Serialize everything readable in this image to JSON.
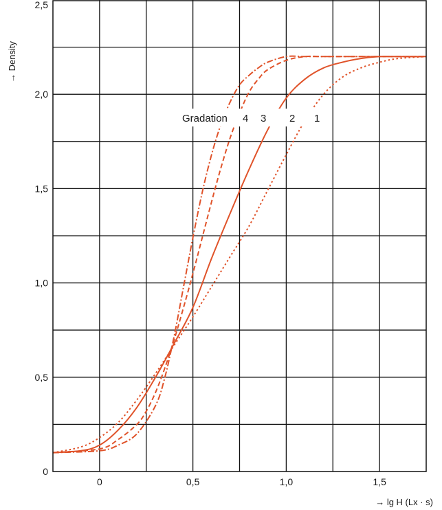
{
  "chart_data": {
    "type": "line",
    "title": "",
    "xlabel": "→ lg H (Lx · s)",
    "ylabel": "→ Density",
    "xlim": [
      -0.25,
      1.75
    ],
    "ylim": [
      0,
      2.5
    ],
    "xticks": [
      0,
      0.5,
      1.0,
      1.5
    ],
    "xtick_labels": [
      "0",
      "0,5",
      "1,0",
      "1,5"
    ],
    "yticks": [
      0,
      0.5,
      1.0,
      1.5,
      2.0,
      2.5
    ],
    "ytick_labels": [
      "0",
      "0,5",
      "1,0",
      "1,5",
      "2,0",
      "2,5"
    ],
    "grid": true,
    "color": "#e0532a",
    "annotation": {
      "prefix": "Gradation",
      "labels": [
        "4",
        "3",
        "2",
        "1"
      ]
    },
    "series": [
      {
        "name": "4",
        "dash": "dashdot",
        "x": [
          -0.25,
          0.0,
          0.1,
          0.2,
          0.3,
          0.35,
          0.4,
          0.45,
          0.5,
          0.55,
          0.6,
          0.65,
          0.7,
          0.75,
          0.8,
          0.85,
          0.9,
          1.0,
          1.1,
          1.2,
          1.3,
          1.4,
          1.5,
          1.75
        ],
        "y": [
          0.1,
          0.11,
          0.14,
          0.2,
          0.35,
          0.5,
          0.72,
          0.98,
          1.24,
          1.48,
          1.68,
          1.84,
          1.96,
          2.05,
          2.1,
          2.14,
          2.17,
          2.2,
          2.2,
          2.2,
          2.2,
          2.2,
          2.2,
          2.2
        ]
      },
      {
        "name": "3",
        "dash": "dashed",
        "x": [
          -0.25,
          0.0,
          0.1,
          0.2,
          0.25,
          0.3,
          0.35,
          0.4,
          0.45,
          0.5,
          0.55,
          0.6,
          0.65,
          0.7,
          0.75,
          0.8,
          0.85,
          0.9,
          1.0,
          1.1,
          1.2,
          1.3,
          1.5,
          1.75
        ],
        "y": [
          0.1,
          0.12,
          0.17,
          0.25,
          0.32,
          0.42,
          0.55,
          0.7,
          0.87,
          1.05,
          1.24,
          1.43,
          1.61,
          1.77,
          1.9,
          2.01,
          2.08,
          2.13,
          2.18,
          2.2,
          2.2,
          2.2,
          2.2,
          2.2
        ]
      },
      {
        "name": "2",
        "dash": "solid",
        "x": [
          -0.25,
          -0.1,
          0.0,
          0.1,
          0.2,
          0.3,
          0.4,
          0.5,
          0.6,
          0.7,
          0.8,
          0.9,
          1.0,
          1.1,
          1.2,
          1.3,
          1.4,
          1.5,
          1.6,
          1.75
        ],
        "y": [
          0.1,
          0.11,
          0.14,
          0.22,
          0.34,
          0.5,
          0.68,
          0.87,
          1.13,
          1.37,
          1.6,
          1.81,
          1.98,
          2.08,
          2.14,
          2.17,
          2.19,
          2.2,
          2.2,
          2.2
        ]
      },
      {
        "name": "1",
        "dash": "dotted",
        "x": [
          -0.25,
          -0.1,
          0.0,
          0.1,
          0.2,
          0.3,
          0.4,
          0.5,
          0.6,
          0.7,
          0.8,
          0.9,
          1.0,
          1.1,
          1.2,
          1.3,
          1.4,
          1.5,
          1.6,
          1.75
        ],
        "y": [
          0.1,
          0.13,
          0.18,
          0.26,
          0.38,
          0.52,
          0.67,
          0.82,
          0.98,
          1.14,
          1.3,
          1.49,
          1.68,
          1.86,
          2.0,
          2.09,
          2.14,
          2.17,
          2.19,
          2.2
        ]
      }
    ]
  }
}
